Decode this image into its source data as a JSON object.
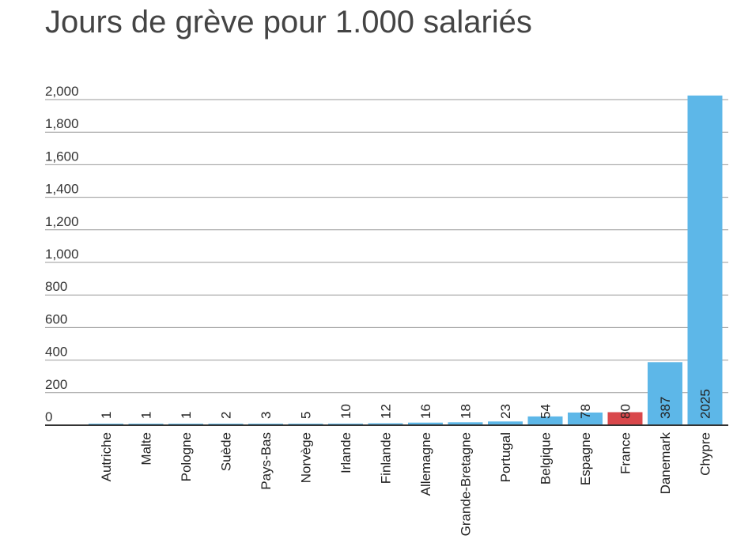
{
  "chart_data": {
    "type": "bar",
    "title": "Jours de grève pour 1.000 salariés",
    "xlabel": "",
    "ylabel": "",
    "ylim": [
      0,
      2000
    ],
    "yticks": [
      0,
      200,
      400,
      600,
      800,
      1000,
      1200,
      1400,
      1600,
      1800,
      2000
    ],
    "ytick_labels": [
      "0",
      "200",
      "400",
      "600",
      "800",
      "1,000",
      "1,200",
      "1,400",
      "1,600",
      "1,800",
      "2,000"
    ],
    "grid": true,
    "categories": [
      "Autriche",
      "Malte",
      "Pologne",
      "Suède",
      "Pays-Bas",
      "Norvège",
      "Irlande",
      "Finlande",
      "Allemagne",
      "Grande-Bretagne",
      "Portugal",
      "Belgique",
      "Espagne",
      "France",
      "Danemark",
      "Chypre"
    ],
    "values": [
      1,
      1,
      1,
      2,
      3,
      5,
      10,
      12,
      16,
      18,
      23,
      54,
      78,
      80,
      387,
      2025
    ],
    "value_labels": [
      "1",
      "1",
      "1",
      "2",
      "3",
      "5",
      "10",
      "12",
      "16",
      "18",
      "23",
      "54",
      "78",
      "80",
      "387",
      "2025"
    ],
    "colors": {
      "default": "#5DB7E8",
      "highlight": "#D9474B",
      "highlight_category": "France"
    }
  }
}
